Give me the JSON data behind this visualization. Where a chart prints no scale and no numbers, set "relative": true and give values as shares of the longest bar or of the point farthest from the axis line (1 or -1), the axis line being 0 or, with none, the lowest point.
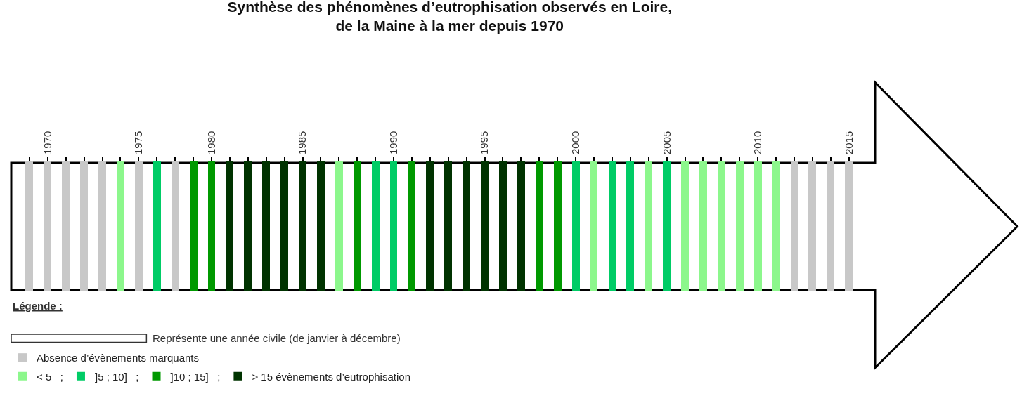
{
  "chart_data": {
    "type": "bar",
    "title": "Synthèse des phénomènes d’eutrophisation observés en Loire,\nde la Maine à la mer depuis 1970",
    "categories": [
      null,
      "1970",
      null,
      null,
      null,
      null,
      "1975",
      null,
      null,
      null,
      "1980",
      null,
      null,
      null,
      null,
      "1985",
      null,
      null,
      null,
      null,
      "1990",
      null,
      null,
      null,
      null,
      "1995",
      null,
      null,
      null,
      null,
      "2000",
      null,
      null,
      null,
      null,
      "2005",
      null,
      null,
      null,
      null,
      "2010",
      null,
      null,
      null,
      null,
      "2015"
    ],
    "relative": true,
    "stacked": true,
    "legend": "bottom left",
    "legend_title": "Légende :",
    "annotations": [
      "Représente une année civile (de janvier à décembre)"
    ],
    "series": [
      {
        "name": "Absence d’évènements marquants",
        "color": "#c8c8c8",
        "values": [
          1,
          1,
          1,
          1,
          1,
          null,
          1,
          null,
          1,
          null,
          null,
          null,
          null,
          null,
          null,
          null,
          null,
          null,
          null,
          null,
          null,
          null,
          null,
          null,
          null,
          null,
          null,
          null,
          null,
          null,
          null,
          null,
          null,
          null,
          null,
          null,
          null,
          null,
          null,
          null,
          null,
          null,
          1,
          1,
          1,
          1
        ]
      },
      {
        "name": "< 5   ;",
        "color": "#8cf78c",
        "values": [
          null,
          null,
          null,
          null,
          null,
          1,
          null,
          null,
          null,
          null,
          null,
          null,
          null,
          null,
          null,
          null,
          null,
          1,
          null,
          null,
          null,
          null,
          null,
          null,
          null,
          null,
          null,
          null,
          null,
          null,
          null,
          1,
          null,
          null,
          1,
          null,
          1,
          1,
          1,
          1,
          1,
          1,
          null,
          null,
          null,
          null
        ]
      },
      {
        "name": "]5 ; 10]   ;",
        "color": "#00cc66",
        "values": [
          null,
          null,
          null,
          null,
          null,
          null,
          null,
          1,
          null,
          null,
          null,
          null,
          null,
          null,
          null,
          null,
          null,
          null,
          null,
          1,
          1,
          null,
          null,
          null,
          null,
          null,
          null,
          null,
          null,
          null,
          1,
          null,
          1,
          1,
          null,
          1,
          null,
          null,
          null,
          null,
          null,
          null,
          null,
          null,
          null,
          null
        ]
      },
      {
        "name": "]10 ; 15]   ;",
        "color": "#009900",
        "values": [
          null,
          null,
          null,
          null,
          null,
          null,
          null,
          null,
          null,
          1,
          1,
          null,
          null,
          null,
          null,
          null,
          null,
          null,
          1,
          null,
          null,
          1,
          null,
          null,
          null,
          null,
          null,
          null,
          1,
          1,
          null,
          null,
          null,
          null,
          null,
          null,
          null,
          null,
          null,
          null,
          null,
          null,
          null,
          null,
          null,
          null
        ]
      },
      {
        "name": "> 15 évènements d’eutrophisation",
        "color": "#003300",
        "values": [
          null,
          null,
          null,
          null,
          null,
          null,
          null,
          null,
          null,
          null,
          null,
          1,
          1,
          1,
          1,
          1,
          1,
          null,
          null,
          null,
          null,
          null,
          1,
          1,
          1,
          1,
          1,
          1,
          null,
          null,
          null,
          null,
          null,
          null,
          null,
          null,
          null,
          null,
          null,
          null,
          null,
          null,
          null,
          null,
          null,
          null
        ]
      }
    ]
  }
}
